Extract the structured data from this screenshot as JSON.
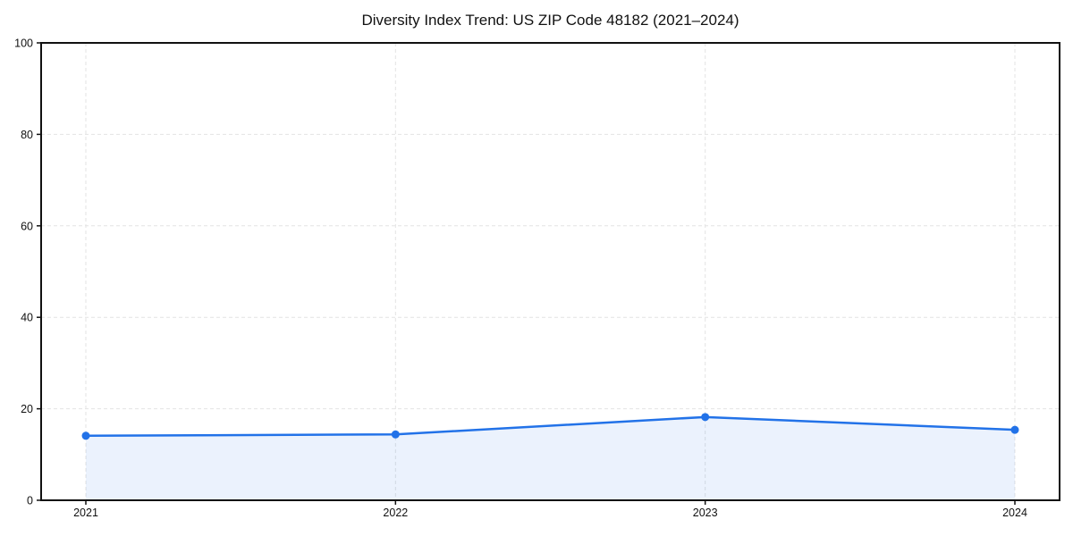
{
  "chart_data": {
    "type": "area",
    "title": "Diversity Index Trend: US ZIP Code 48182 (2021–2024)",
    "x": [
      "2021",
      "2022",
      "2023",
      "2024"
    ],
    "series": [
      {
        "name": "Diversity Index",
        "values": [
          14.1,
          14.4,
          18.2,
          15.4
        ]
      }
    ],
    "xlabel": "",
    "ylabel": "",
    "ylim": [
      0,
      100
    ],
    "yticks": [
      0,
      20,
      40,
      60,
      80,
      100
    ],
    "grid": true,
    "grid_style": "dashed",
    "legend_position": "none",
    "colors": {
      "line": "#2272e8",
      "marker": "#2272e8",
      "fill": "rgba(34,114,232,0.09)",
      "grid": "#e3e3e3",
      "axis": "#111111",
      "text": "#111111",
      "background": "#ffffff"
    }
  }
}
